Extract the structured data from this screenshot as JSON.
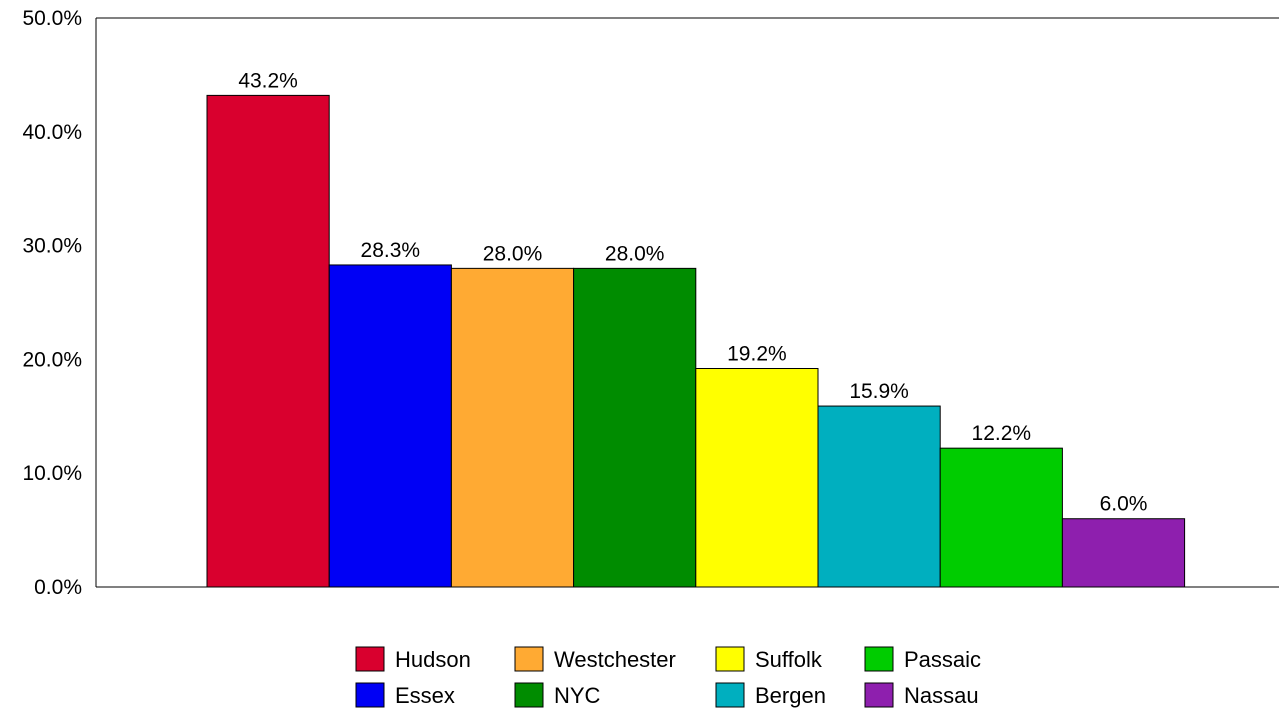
{
  "chart_data": {
    "type": "bar",
    "title": "",
    "xlabel": "",
    "ylabel": "",
    "ylim": [
      0,
      50
    ],
    "y_ticks": [
      "0.0%",
      "10.0%",
      "20.0%",
      "30.0%",
      "40.0%",
      "50.0%"
    ],
    "grid": false,
    "legend_position": "bottom",
    "series": [
      {
        "name": "Hudson",
        "value": 43.2,
        "label": "43.2%",
        "color": "#D9002E"
      },
      {
        "name": "Essex",
        "value": 28.3,
        "label": "28.3%",
        "color": "#0000F5"
      },
      {
        "name": "Westchester",
        "value": 28.0,
        "label": "28.0%",
        "color": "#FFAA33"
      },
      {
        "name": "NYC",
        "value": 28.0,
        "label": "28.0%",
        "color": "#008C00"
      },
      {
        "name": "Suffolk",
        "value": 19.2,
        "label": "19.2%",
        "color": "#FFFF00"
      },
      {
        "name": "Bergen",
        "value": 15.9,
        "label": "15.9%",
        "color": "#00AFBF"
      },
      {
        "name": "Passaic",
        "value": 12.2,
        "label": "12.2%",
        "color": "#00CC00"
      },
      {
        "name": "Nassau",
        "value": 6.0,
        "label": "6.0%",
        "color": "#8E1FAE"
      }
    ],
    "legend_order": [
      "Hudson",
      "Westchester",
      "Suffolk",
      "Passaic",
      "Essex",
      "NYC",
      "Bergen",
      "Nassau"
    ]
  }
}
